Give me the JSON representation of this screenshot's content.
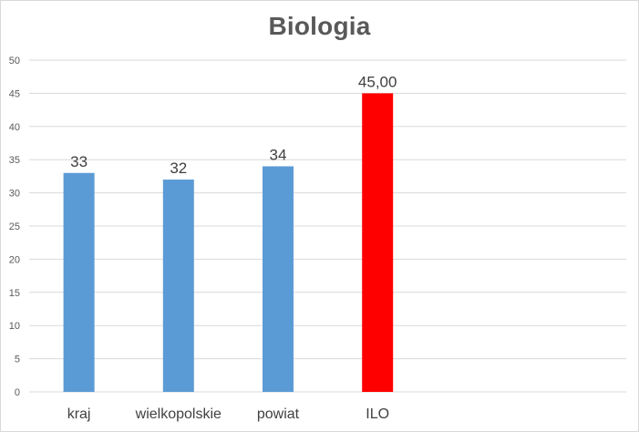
{
  "chart_data": {
    "type": "bar",
    "title": "Biologia",
    "categories": [
      "kraj",
      "wielkopolskie",
      "powiat",
      "ILO"
    ],
    "series": [
      {
        "values": [
          33,
          32,
          34,
          45
        ],
        "data_labels": [
          "33",
          "32",
          "34",
          "45,00"
        ],
        "colors": [
          "#5b9bd5",
          "#5b9bd5",
          "#5b9bd5",
          "#ff0000"
        ]
      }
    ],
    "xlabel": "",
    "ylabel": "",
    "ylim": [
      0,
      50
    ],
    "yticks": [
      0,
      5,
      10,
      15,
      20,
      25,
      30,
      35,
      40,
      45,
      50
    ],
    "grid": true,
    "legend": "none"
  }
}
